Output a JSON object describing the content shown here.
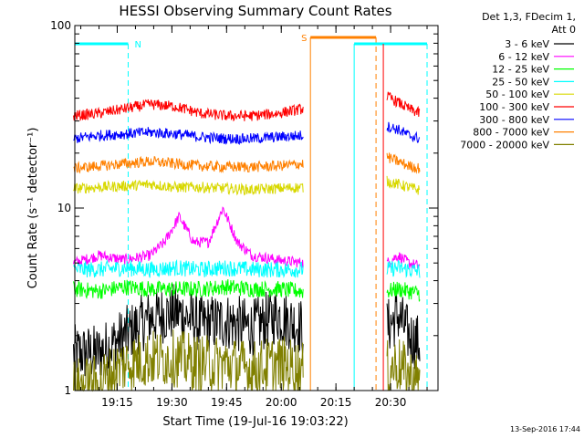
{
  "chart_data": {
    "type": "line",
    "title": "HESSI Observing Summary Count Rates",
    "xlabel": "Start Time (19-Jul-16 19:03:22)",
    "ylabel": "Count Rate (s⁻¹ detector⁻¹)",
    "yscale": "log",
    "ylim": [
      1,
      100
    ],
    "xlim": [
      "19:03:22",
      "20:43:00"
    ],
    "x_ticks": [
      "19:15",
      "19:30",
      "19:45",
      "20:00",
      "20:15",
      "20:30"
    ],
    "y_ticks": [
      "1",
      "10",
      "100"
    ],
    "legend_header": [
      "Det 1,3, FDecim 1,",
      "Att 0"
    ],
    "footer_date": "13-Sep-2016 17:44",
    "series": [
      {
        "name": "3 - 6 keV",
        "color": "#000000",
        "segments": [
          {
            "x": [
              "19:03",
              "19:10",
              "19:17",
              "19:24",
              "19:31",
              "19:38",
              "19:45",
              "19:52",
              "19:59",
              "20:06"
            ],
            "y": [
              1.6,
              1.6,
              2.0,
              2.5,
              2.7,
              2.3,
              2.4,
              2.2,
              2.6,
              2.2
            ]
          },
          {
            "x": [
              "20:29",
              "20:32",
              "20:35",
              "20:38"
            ],
            "y": [
              2.2,
              2.6,
              2.0,
              1.8
            ]
          }
        ]
      },
      {
        "name": "6 - 12 keV",
        "color": "#ff00ff",
        "segments": [
          {
            "x": [
              "19:03",
              "19:10",
              "19:17",
              "19:24",
              "19:28",
              "19:32",
              "19:36",
              "19:40",
              "19:44",
              "19:48",
              "19:52",
              "19:59",
              "20:06"
            ],
            "y": [
              5.0,
              5.5,
              5.2,
              5.5,
              6.5,
              9.0,
              6.5,
              6.5,
              10.0,
              6.5,
              5.5,
              5.2,
              5.0
            ]
          },
          {
            "x": [
              "20:29",
              "20:32",
              "20:35",
              "20:38"
            ],
            "y": [
              5.0,
              5.5,
              5.0,
              4.8
            ]
          }
        ]
      },
      {
        "name": "12 - 25 keV",
        "color": "#00ff00",
        "segments": [
          {
            "x": [
              "19:03",
              "19:10",
              "19:17",
              "19:24",
              "19:31",
              "19:38",
              "19:45",
              "19:52",
              "19:59",
              "20:06"
            ],
            "y": [
              3.6,
              3.5,
              3.7,
              3.6,
              3.6,
              3.6,
              3.7,
              3.6,
              3.6,
              3.5
            ]
          },
          {
            "x": [
              "20:29",
              "20:32",
              "20:35",
              "20:38"
            ],
            "y": [
              3.5,
              3.6,
              3.5,
              3.4
            ]
          }
        ]
      },
      {
        "name": "25 - 50 keV",
        "color": "#00ffff",
        "segments": [
          {
            "x": [
              "19:03",
              "19:10",
              "19:17",
              "19:24",
              "19:31",
              "19:38",
              "19:45",
              "19:52",
              "19:59",
              "20:06"
            ],
            "y": [
              4.6,
              4.6,
              4.7,
              4.6,
              4.7,
              4.6,
              4.7,
              4.6,
              4.6,
              4.6
            ]
          },
          {
            "x": [
              "20:29",
              "20:32",
              "20:35",
              "20:38"
            ],
            "y": [
              4.6,
              4.7,
              4.6,
              4.5
            ]
          }
        ]
      },
      {
        "name": "50 - 100 keV",
        "color": "#d8d800",
        "segments": [
          {
            "x": [
              "19:03",
              "19:10",
              "19:17",
              "19:24",
              "19:31",
              "19:38",
              "19:45",
              "19:52",
              "19:59",
              "20:06"
            ],
            "y": [
              12.8,
              13.0,
              13.2,
              13.5,
              13.0,
              13.0,
              12.8,
              12.6,
              12.8,
              13.0
            ]
          },
          {
            "x": [
              "20:29",
              "20:32",
              "20:35",
              "20:38"
            ],
            "y": [
              14.0,
              13.5,
              13.0,
              12.5
            ]
          }
        ]
      },
      {
        "name": "100 - 300 keV",
        "color": "#ff0000",
        "segments": [
          {
            "x": [
              "19:03",
              "19:10",
              "19:17",
              "19:24",
              "19:31",
              "19:38",
              "19:45",
              "19:52",
              "19:59",
              "20:06"
            ],
            "y": [
              32,
              33,
              35,
              37,
              36,
              33,
              32,
              32,
              33,
              35
            ]
          },
          {
            "x": [
              "20:29",
              "20:32",
              "20:35",
              "20:38"
            ],
            "y": [
              41,
              38,
              35,
              33
            ]
          }
        ]
      },
      {
        "name": "300 - 800 keV",
        "color": "#0000ff",
        "segments": [
          {
            "x": [
              "19:03",
              "19:10",
              "19:17",
              "19:24",
              "19:31",
              "19:38",
              "19:45",
              "19:52",
              "19:59",
              "20:06"
            ],
            "y": [
              24,
              25,
              25.5,
              26,
              25.5,
              24.5,
              24,
              24,
              24.5,
              25
            ]
          },
          {
            "x": [
              "20:29",
              "20:32",
              "20:35",
              "20:38"
            ],
            "y": [
              28,
              27,
              25,
              24
            ]
          }
        ]
      },
      {
        "name": "800 - 7000 keV",
        "color": "#ff8000",
        "segments": [
          {
            "x": [
              "19:03",
              "19:10",
              "19:17",
              "19:24",
              "19:31",
              "19:38",
              "19:45",
              "19:52",
              "19:59",
              "20:06"
            ],
            "y": [
              16.5,
              17.0,
              17.5,
              18.0,
              17.5,
              17.0,
              16.8,
              16.8,
              17.0,
              17.5
            ]
          },
          {
            "x": [
              "20:29",
              "20:32",
              "20:35",
              "20:38"
            ],
            "y": [
              19.0,
              18.0,
              17.0,
              16.5
            ]
          }
        ]
      },
      {
        "name": "7000 - 20000 keV",
        "color": "#808000",
        "segments": [
          {
            "x": [
              "19:03",
              "19:10",
              "19:17",
              "19:24",
              "19:31",
              "19:38",
              "19:45",
              "19:52",
              "19:59",
              "20:06"
            ],
            "y": [
              1.05,
              1.1,
              1.4,
              1.5,
              1.5,
              1.4,
              1.4,
              1.3,
              1.4,
              1.3
            ]
          },
          {
            "x": [
              "20:29",
              "20:32",
              "20:35",
              "20:38"
            ],
            "y": [
              1.3,
              1.4,
              1.2,
              1.1
            ]
          }
        ]
      }
    ],
    "annotations": [
      {
        "label": "N",
        "color": "#00ffff",
        "bar_x": [
          "19:03:22",
          "19:18"
        ],
        "dashed_x": "19:18"
      },
      {
        "label": "S",
        "color": "#ff8000",
        "bar_x": [
          "20:08",
          "20:26"
        ],
        "solid_x": "20:08",
        "dashed_x": "20:26"
      },
      {
        "label": "",
        "color": "#00ffff",
        "bar_x": [
          "20:20",
          "20:40"
        ],
        "solid_x": "20:20",
        "dashed_x": "20:40"
      },
      {
        "label": "",
        "color": "#ff0000",
        "solid_x": "20:28"
      }
    ]
  }
}
